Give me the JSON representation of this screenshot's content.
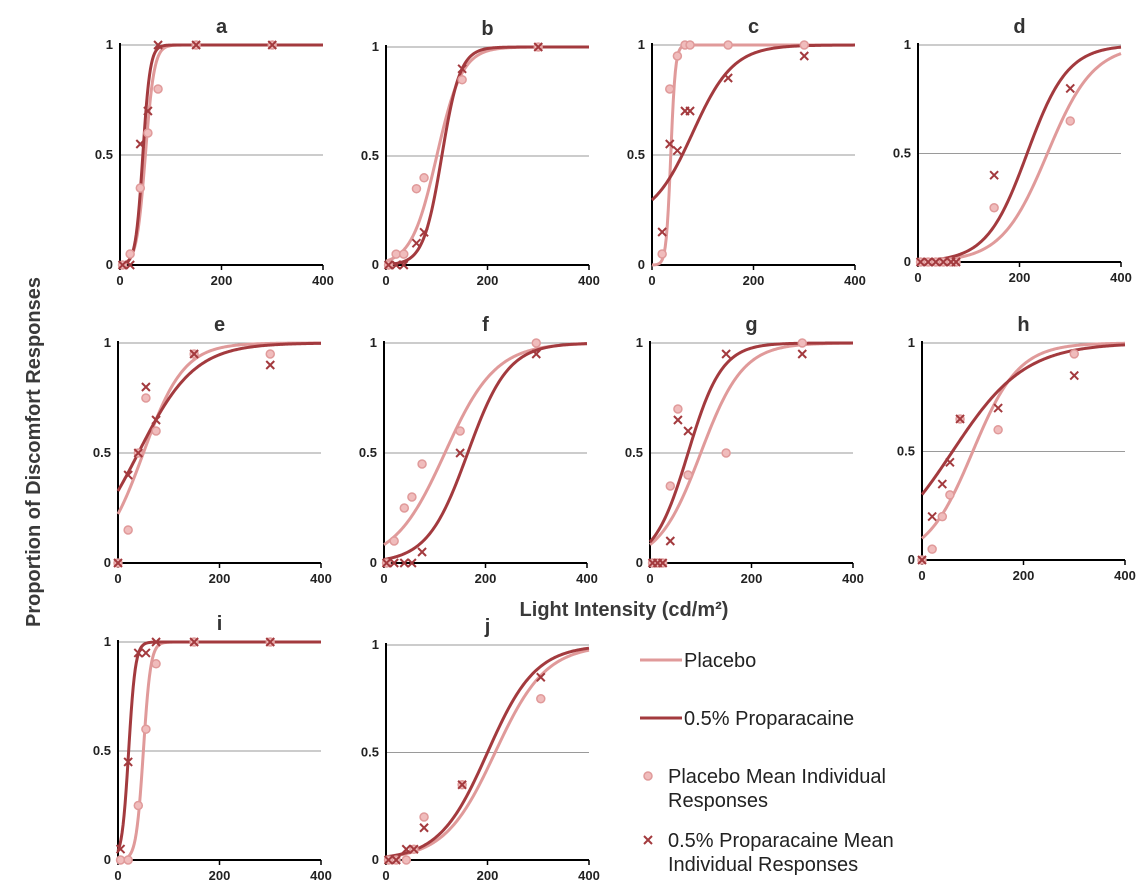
{
  "figure": {
    "shared_ylabel": "Proportion of Discomfort Responses",
    "shared_xlabel": "Light Intensity (cd/m²)"
  },
  "legend": {
    "placement": "bottom-right",
    "items": [
      {
        "label": "Placebo",
        "kind": "line",
        "color": "#e09a9a"
      },
      {
        "label": "0.5% Proparacaine",
        "kind": "line",
        "color": "#a33a3e"
      },
      {
        "label": "Placebo Mean Individual Responses",
        "lines": [
          "Placebo Mean Individual",
          "Responses"
        ],
        "kind": "circle",
        "color": "#e09a9a"
      },
      {
        "label": "0.5% Proparacaine Mean Individual Responses",
        "lines": [
          "0.5% Proparacaine Mean",
          "Individual Responses"
        ],
        "kind": "cross",
        "color": "#a33a3e"
      }
    ]
  },
  "chart_data": [
    {
      "type": "line",
      "title": "a",
      "xlim": [
        0,
        400
      ],
      "ylim": [
        0,
        1
      ],
      "xticks": [
        0,
        200,
        400
      ],
      "yticks": [
        0,
        0.5,
        1
      ],
      "grid": "horizontal",
      "series": [
        {
          "name": "Placebo",
          "kind": "curve",
          "x50": 50,
          "slope": 0.115,
          "base": 0
        },
        {
          "name": "0.5% Proparacaine",
          "kind": "curve",
          "x50": 45,
          "slope": 0.14,
          "base": 0
        },
        {
          "name": "Placebo Mean Individual Responses",
          "kind": "points",
          "x": [
            5,
            20,
            40,
            55,
            75,
            150,
            300
          ],
          "y": [
            0,
            0.05,
            0.35,
            0.6,
            0.8,
            1,
            1
          ]
        },
        {
          "name": "0.5% Proparacaine Mean Individual Responses",
          "kind": "points",
          "x": [
            5,
            20,
            40,
            55,
            75,
            150,
            300
          ],
          "y": [
            0,
            0,
            0.55,
            0.7,
            1,
            1,
            1
          ]
        }
      ]
    },
    {
      "type": "line",
      "title": "b",
      "xlim": [
        0,
        400
      ],
      "ylim": [
        0,
        1
      ],
      "xticks": [
        0,
        200,
        400
      ],
      "yticks": [
        0,
        0.5,
        1
      ],
      "grid": "horizontal",
      "series": [
        {
          "name": "Placebo",
          "kind": "curve",
          "x50": 100,
          "slope": 0.04,
          "base": 0
        },
        {
          "name": "0.5% Proparacaine",
          "kind": "curve",
          "x50": 110,
          "slope": 0.055,
          "base": 0
        },
        {
          "name": "Placebo Mean Individual Responses",
          "kind": "points",
          "x": [
            5,
            20,
            35,
            60,
            75,
            150,
            300
          ],
          "y": [
            0,
            0.05,
            0.05,
            0.35,
            0.4,
            0.85,
            1
          ]
        },
        {
          "name": "0.5% Proparacaine Mean Individual Responses",
          "kind": "points",
          "x": [
            5,
            20,
            35,
            60,
            75,
            150,
            300
          ],
          "y": [
            0,
            0,
            0,
            0.1,
            0.15,
            0.9,
            1
          ]
        }
      ]
    },
    {
      "type": "line",
      "title": "c",
      "xlim": [
        0,
        400
      ],
      "ylim": [
        0,
        1
      ],
      "xticks": [
        0,
        200,
        400
      ],
      "yticks": [
        0,
        0.5,
        1
      ],
      "grid": "horizontal",
      "series": [
        {
          "name": "Placebo",
          "kind": "curve",
          "x50": 37,
          "slope": 0.22,
          "base": 0
        },
        {
          "name": "0.5% Proparacaine",
          "kind": "curve",
          "x50": 80,
          "slope": 0.025,
          "base": 0.2
        },
        {
          "name": "Placebo Mean Individual Responses",
          "kind": "points",
          "x": [
            20,
            35,
            50,
            65,
            75,
            150,
            300
          ],
          "y": [
            0.05,
            0.8,
            0.95,
            1,
            1,
            1,
            1
          ]
        },
        {
          "name": "0.5% Proparacaine Mean Individual Responses",
          "kind": "points",
          "x": [
            20,
            35,
            50,
            65,
            75,
            150,
            300
          ],
          "y": [
            0.15,
            0.55,
            0.52,
            0.7,
            0.7,
            0.85,
            0.95
          ]
        }
      ]
    },
    {
      "type": "line",
      "title": "d",
      "xlim": [
        0,
        400
      ],
      "ylim": [
        0,
        1
      ],
      "xticks": [
        0,
        200,
        400
      ],
      "yticks": [
        0,
        0.5,
        1
      ],
      "grid": "horizontal",
      "series": [
        {
          "name": "Placebo",
          "kind": "curve",
          "x50": 255,
          "slope": 0.022,
          "base": 0
        },
        {
          "name": "0.5% Proparacaine",
          "kind": "curve",
          "x50": 215,
          "slope": 0.025,
          "base": 0
        },
        {
          "name": "Placebo Mean Individual Responses",
          "kind": "points",
          "x": [
            5,
            20,
            35,
            50,
            65,
            75,
            150,
            300
          ],
          "y": [
            0,
            0,
            0,
            0,
            0,
            0,
            0.25,
            0.65
          ]
        },
        {
          "name": "0.5% Proparacaine Mean Individual Responses",
          "kind": "points",
          "x": [
            5,
            20,
            35,
            50,
            65,
            75,
            150,
            300
          ],
          "y": [
            0,
            0,
            0,
            0,
            0,
            0,
            0.4,
            0.8
          ]
        }
      ]
    },
    {
      "type": "line",
      "title": "e",
      "xlim": [
        0,
        400
      ],
      "ylim": [
        0,
        1
      ],
      "xticks": [
        0,
        200,
        400
      ],
      "yticks": [
        0,
        0.5,
        1
      ],
      "grid": "horizontal",
      "series": [
        {
          "name": "Placebo",
          "kind": "curve",
          "x50": 50,
          "slope": 0.025,
          "base": 0
        },
        {
          "name": "0.5% Proparacaine",
          "kind": "curve",
          "x50": 40,
          "slope": 0.018,
          "base": 0
        },
        {
          "name": "Placebo Mean Individual Responses",
          "kind": "points",
          "x": [
            0,
            20,
            40,
            55,
            75,
            150,
            300
          ],
          "y": [
            0,
            0.15,
            0.5,
            0.75,
            0.6,
            0.95,
            0.95
          ]
        },
        {
          "name": "0.5% Proparacaine Mean Individual Responses",
          "kind": "points",
          "x": [
            0,
            20,
            40,
            55,
            75,
            150,
            300
          ],
          "y": [
            0,
            0.4,
            0.5,
            0.8,
            0.65,
            0.95,
            0.9
          ]
        }
      ]
    },
    {
      "type": "line",
      "title": "f",
      "xlim": [
        0,
        400
      ],
      "ylim": [
        0,
        1
      ],
      "xticks": [
        0,
        200,
        400
      ],
      "yticks": [
        0,
        0.5,
        1
      ],
      "grid": "horizontal",
      "series": [
        {
          "name": "Placebo",
          "kind": "curve",
          "x50": 120,
          "slope": 0.02,
          "base": 0
        },
        {
          "name": "0.5% Proparacaine",
          "kind": "curve",
          "x50": 165,
          "slope": 0.025,
          "base": 0
        },
        {
          "name": "Placebo Mean Individual Responses",
          "kind": "points",
          "x": [
            5,
            20,
            40,
            55,
            75,
            150,
            300
          ],
          "y": [
            0,
            0.1,
            0.25,
            0.3,
            0.45,
            0.6,
            1
          ]
        },
        {
          "name": "0.5% Proparacaine Mean Individual Responses",
          "kind": "points",
          "x": [
            5,
            20,
            40,
            55,
            75,
            150,
            300
          ],
          "y": [
            0,
            0,
            0,
            0,
            0.05,
            0.5,
            0.95
          ]
        }
      ]
    },
    {
      "type": "line",
      "title": "g",
      "xlim": [
        0,
        400
      ],
      "ylim": [
        0,
        1
      ],
      "xticks": [
        0,
        200,
        400
      ],
      "yticks": [
        0,
        0.5,
        1
      ],
      "grid": "horizontal",
      "series": [
        {
          "name": "Placebo",
          "kind": "curve",
          "x50": 100,
          "slope": 0.024,
          "base": 0
        },
        {
          "name": "0.5% Proparacaine",
          "kind": "curve",
          "x50": 75,
          "slope": 0.03,
          "base": 0
        },
        {
          "name": "Placebo Mean Individual Responses",
          "kind": "points",
          "x": [
            5,
            15,
            25,
            40,
            55,
            75,
            150,
            300
          ],
          "y": [
            0,
            0,
            0,
            0.35,
            0.7,
            0.4,
            0.5,
            1
          ]
        },
        {
          "name": "0.5% Proparacaine Mean Individual Responses",
          "kind": "points",
          "x": [
            5,
            15,
            25,
            40,
            55,
            75,
            150,
            300
          ],
          "y": [
            0,
            0,
            0,
            0.1,
            0.65,
            0.6,
            0.95,
            0.95
          ]
        }
      ]
    },
    {
      "type": "line",
      "title": "h",
      "xlim": [
        0,
        400
      ],
      "ylim": [
        0,
        1
      ],
      "xticks": [
        0,
        200,
        400
      ],
      "yticks": [
        0,
        0.5,
        1
      ],
      "grid": "horizontal",
      "series": [
        {
          "name": "Placebo",
          "kind": "curve",
          "x50": 100,
          "slope": 0.022,
          "base": 0
        },
        {
          "name": "0.5% Proparacaine",
          "kind": "curve",
          "x50": 60,
          "slope": 0.014,
          "base": 0
        },
        {
          "name": "Placebo Mean Individual Responses",
          "kind": "points",
          "x": [
            0,
            20,
            40,
            55,
            75,
            150,
            300
          ],
          "y": [
            0,
            0.05,
            0.2,
            0.3,
            0.65,
            0.6,
            0.95
          ]
        },
        {
          "name": "0.5% Proparacaine Mean Individual Responses",
          "kind": "points",
          "x": [
            0,
            20,
            40,
            55,
            75,
            150,
            300
          ],
          "y": [
            0,
            0.2,
            0.35,
            0.45,
            0.65,
            0.7,
            0.85
          ]
        }
      ]
    },
    {
      "type": "line",
      "title": "i",
      "xlim": [
        0,
        400
      ],
      "ylim": [
        0,
        1
      ],
      "xticks": [
        0,
        200,
        400
      ],
      "yticks": [
        0,
        0.5,
        1
      ],
      "grid": "horizontal",
      "series": [
        {
          "name": "Placebo",
          "kind": "curve",
          "x50": 50,
          "slope": 0.14,
          "base": 0
        },
        {
          "name": "0.5% Proparacaine",
          "kind": "curve",
          "x50": 21,
          "slope": 0.15,
          "base": 0
        },
        {
          "name": "Placebo Mean Individual Responses",
          "kind": "points",
          "x": [
            5,
            20,
            40,
            55,
            75,
            150,
            300
          ],
          "y": [
            0,
            0,
            0.25,
            0.6,
            0.9,
            1,
            1
          ]
        },
        {
          "name": "0.5% Proparacaine Mean Individual Responses",
          "kind": "points",
          "x": [
            5,
            20,
            40,
            55,
            75,
            150,
            300
          ],
          "y": [
            0.05,
            0.45,
            0.95,
            0.95,
            1,
            1,
            1
          ]
        }
      ]
    },
    {
      "type": "line",
      "title": "j",
      "xlim": [
        0,
        400
      ],
      "ylim": [
        0,
        1
      ],
      "xticks": [
        0,
        200,
        400
      ],
      "yticks": [
        0,
        0.5,
        1
      ],
      "grid": "horizontal",
      "series": [
        {
          "name": "Placebo",
          "kind": "curve",
          "x50": 215,
          "slope": 0.02,
          "base": 0
        },
        {
          "name": "0.5% Proparacaine",
          "kind": "curve",
          "x50": 200,
          "slope": 0.021,
          "base": 0
        },
        {
          "name": "Placebo Mean Individual Responses",
          "kind": "points",
          "x": [
            5,
            20,
            40,
            55,
            75,
            150,
            305
          ],
          "y": [
            0,
            0,
            0,
            0.05,
            0.2,
            0.35,
            0.75
          ]
        },
        {
          "name": "0.5% Proparacaine Mean Individual Responses",
          "kind": "points",
          "x": [
            5,
            20,
            40,
            55,
            75,
            150,
            305
          ],
          "y": [
            0,
            0,
            0.05,
            0.05,
            0.15,
            0.35,
            0.85
          ]
        }
      ]
    }
  ]
}
